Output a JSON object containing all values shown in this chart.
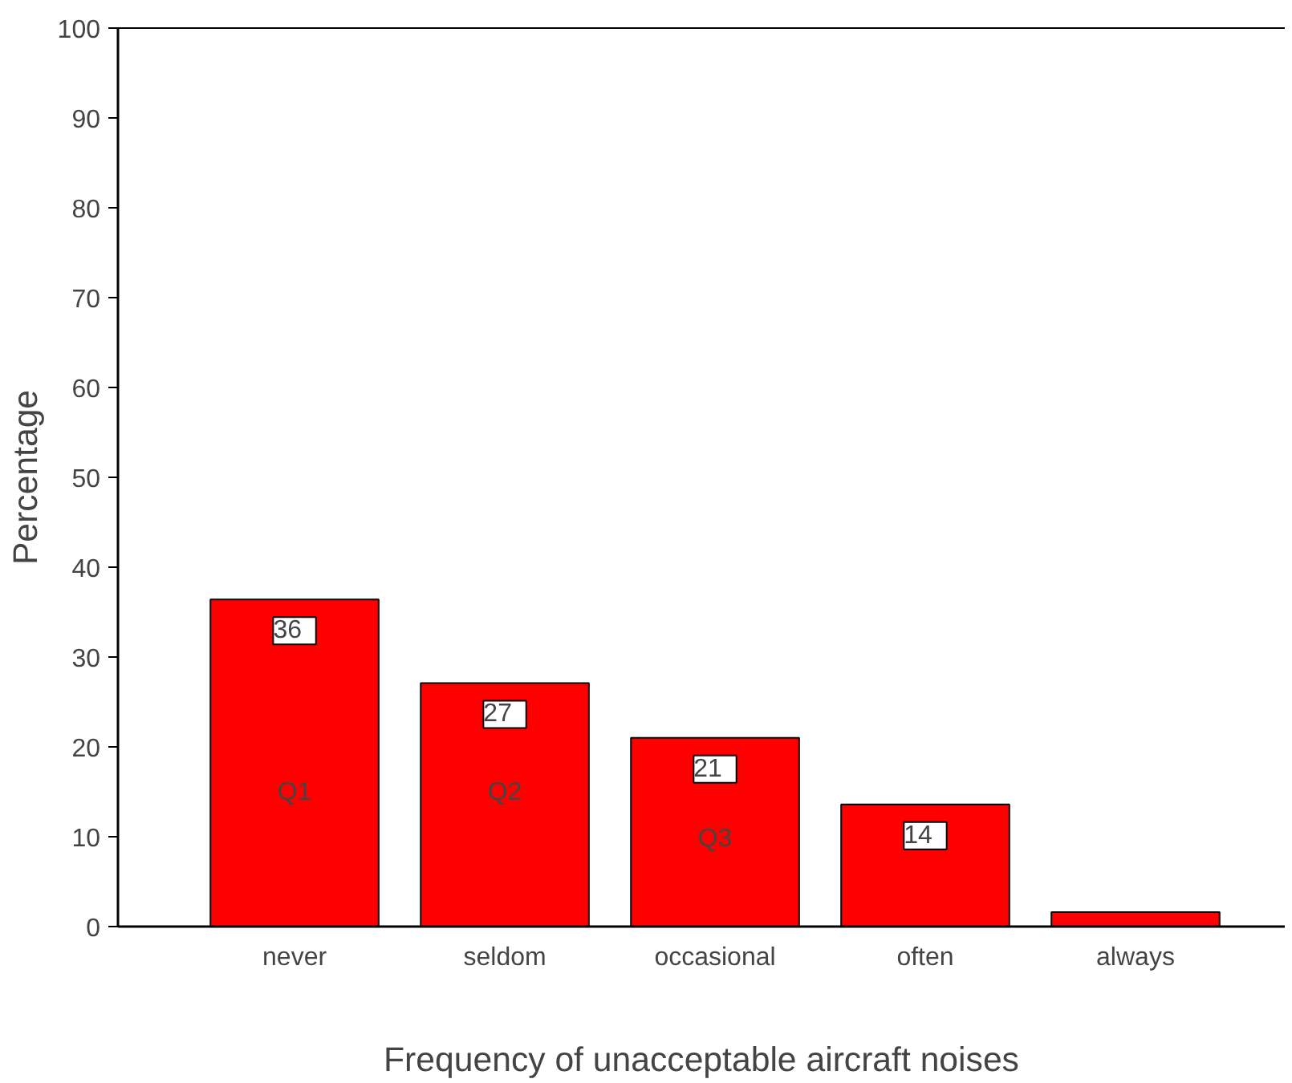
{
  "chart_data": {
    "type": "bar",
    "xlabel": "Frequency of unacceptable aircraft noises",
    "ylabel": "Percentage",
    "categories": [
      "never",
      "seldom",
      "occasional",
      "often",
      "always"
    ],
    "values": [
      36.4,
      27.1,
      21,
      13.6,
      1.6
    ],
    "value_labels": [
      "36",
      "27",
      "21",
      "14",
      null
    ],
    "color": "#ff0000",
    "ylim": [
      0,
      100
    ],
    "yticks": [
      0,
      10,
      20,
      30,
      40,
      50,
      60,
      70,
      80,
      90,
      100
    ],
    "annotations": [
      "Q1",
      "Q2",
      "Q3"
    ],
    "grid": false
  }
}
